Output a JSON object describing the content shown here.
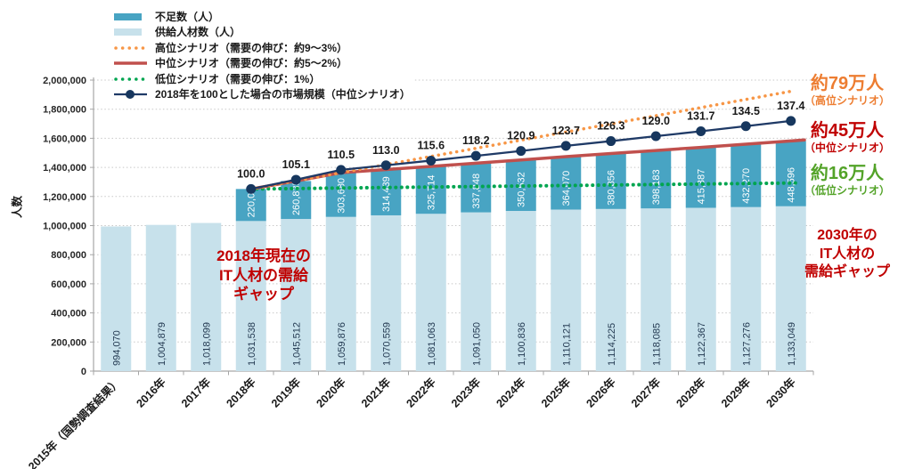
{
  "chart_data": {
    "type": "bar",
    "subtype": "stacked-bars-with-scenario-lines",
    "ylabel": "人数",
    "ylim": [
      0,
      2000000
    ],
    "ytick_step": 200000,
    "ytick_labels": [
      "0",
      "200,000",
      "400,000",
      "600,000",
      "800,000",
      "1,000,000",
      "1,200,000",
      "1,400,000",
      "1,600,000",
      "1,800,000",
      "2,000,000"
    ],
    "grid": true,
    "legend_position": "top-left",
    "categories": [
      "2015年（国勢調査結果）",
      "2016年",
      "2017年",
      "2018年",
      "2019年",
      "2020年",
      "2021年",
      "2022年",
      "2023年",
      "2024年",
      "2025年",
      "2026年",
      "2027年",
      "2028年",
      "2029年",
      "2030年"
    ],
    "bar_series": [
      {
        "name": "供給人材数（人）",
        "role": "supply",
        "color": "#c7e1eb",
        "label_color": "#243a52",
        "values": [
          994070,
          1004879,
          1018099,
          1031538,
          1045512,
          1059876,
          1070559,
          1081063,
          1091050,
          1100836,
          1110121,
          1114225,
          1118085,
          1122367,
          1127276,
          1133049
        ]
      },
      {
        "name": "不足数（人）",
        "role": "shortage",
        "color": "#48a4c3",
        "label_color": "#ffffff",
        "values": [
          null,
          null,
          null,
          220000,
          260835,
          303680,
          314439,
          325714,
          337848,
          350532,
          364070,
          380856,
          398183,
          415387,
          432270,
          448596
        ]
      }
    ],
    "line_series": [
      {
        "name": "高位シナリオ（需要の伸び：約9～3%）",
        "style": "dotted",
        "color": "#f79646",
        "start_category": "2018年",
        "start_value": 1251538,
        "end_category": "2030年",
        "end_value": 1923000
      },
      {
        "name": "中位シナリオ（需要の伸び：約5～2%）",
        "style": "solid",
        "color": "#c0504d",
        "start_category": "2018年",
        "end_category": "2030年",
        "values_rule": "supply_plus_shortage_totals"
      },
      {
        "name": "低位シナリオ（需要の伸び：1%）",
        "style": "dotted",
        "color": "#00a550",
        "start_category": "2018年",
        "start_value": 1251538,
        "end_category": "2030年",
        "end_value": 1293000
      },
      {
        "name": "2018年を100とした場合の市場規模（中位シナリオ）",
        "style": "marker-line",
        "color": "#1f3a66",
        "marker_color": "#17375e",
        "base_value": 1251538,
        "start_category": "2018年",
        "index_values": [
          100.0,
          105.1,
          110.5,
          113.0,
          115.6,
          118.2,
          120.9,
          123.7,
          126.3,
          129.0,
          131.7,
          134.5,
          137.4
        ]
      }
    ]
  },
  "legend": {
    "items": [
      {
        "label": "不足数（人）",
        "swatch": "bar",
        "color": "#48a4c3"
      },
      {
        "label": "供給人材数（人）",
        "swatch": "bar",
        "color": "#c7e1eb"
      },
      {
        "label": "高位シナリオ（需要の伸び：約9～3%）",
        "swatch": "dots",
        "color": "#f79646"
      },
      {
        "label": "中位シナリオ（需要の伸び：約5～2%）",
        "swatch": "line",
        "color": "#c0504d"
      },
      {
        "label": "低位シナリオ（需要の伸び：1%）",
        "swatch": "dots",
        "color": "#00a550"
      },
      {
        "label": "2018年を100とした場合の市場規模（中位シナリオ）",
        "swatch": "marker-line",
        "color": "#1f3a66"
      }
    ]
  },
  "annotations": {
    "gap_2018": {
      "lines": [
        "2018年現在の",
        "IT人材の需給",
        "ギャップ"
      ],
      "color": "#c00000"
    },
    "high": {
      "value": "約79万人",
      "scenario": "（高位シナリオ）",
      "color": "#ed7d31"
    },
    "mid": {
      "value": "約45万人",
      "scenario": "（中位シナリオ）",
      "color": "#c00000"
    },
    "low": {
      "value": "約16万人",
      "scenario": "（低位シナリオ）",
      "color": "#53a328"
    },
    "gap_2030": {
      "lines": [
        "2030年の",
        "IT人材の",
        "需給ギャップ"
      ],
      "color": "#c00000"
    }
  }
}
